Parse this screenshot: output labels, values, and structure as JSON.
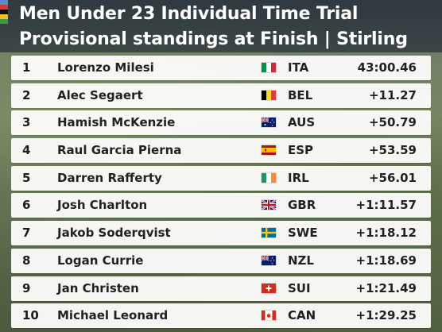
{
  "header": {
    "title_line1": "Men Under 23 Individual Time Trial",
    "title_line2": "Provisional standings at Finish | Stirling",
    "stripe_colors": [
      "#5b8cc9",
      "#d63b2f",
      "#111111",
      "#f2c21b",
      "#3a9a4a"
    ]
  },
  "standings": [
    {
      "pos": "1",
      "name": "Lorenzo Milesi",
      "flag_icon": "italy-flag-icon",
      "nation": "ITA",
      "time": "43:00.46"
    },
    {
      "pos": "2",
      "name": "Alec Segaert",
      "flag_icon": "belgium-flag-icon",
      "nation": "BEL",
      "time": "+11.27"
    },
    {
      "pos": "3",
      "name": "Hamish McKenzie",
      "flag_icon": "australia-flag-icon",
      "nation": "AUS",
      "time": "+50.79"
    },
    {
      "pos": "4",
      "name": "Raul Garcia Pierna",
      "flag_icon": "spain-flag-icon",
      "nation": "ESP",
      "time": "+53.59"
    },
    {
      "pos": "5",
      "name": "Darren Rafferty",
      "flag_icon": "ireland-flag-icon",
      "nation": "IRL",
      "time": "+56.01"
    },
    {
      "pos": "6",
      "name": "Josh Charlton",
      "flag_icon": "uk-flag-icon",
      "nation": "GBR",
      "time": "+1:11.57"
    },
    {
      "pos": "7",
      "name": "Jakob Soderqvist",
      "flag_icon": "sweden-flag-icon",
      "nation": "SWE",
      "time": "+1:18.12"
    },
    {
      "pos": "8",
      "name": "Logan Currie",
      "flag_icon": "new-zealand-flag-icon",
      "nation": "NZL",
      "time": "+1:18.69"
    },
    {
      "pos": "9",
      "name": "Jan Christen",
      "flag_icon": "switzerland-flag-icon",
      "nation": "SUI",
      "time": "+1:21.49"
    },
    {
      "pos": "10",
      "name": "Michael Leonard",
      "flag_icon": "canada-flag-icon",
      "nation": "CAN",
      "time": "+1:29.25"
    }
  ]
}
